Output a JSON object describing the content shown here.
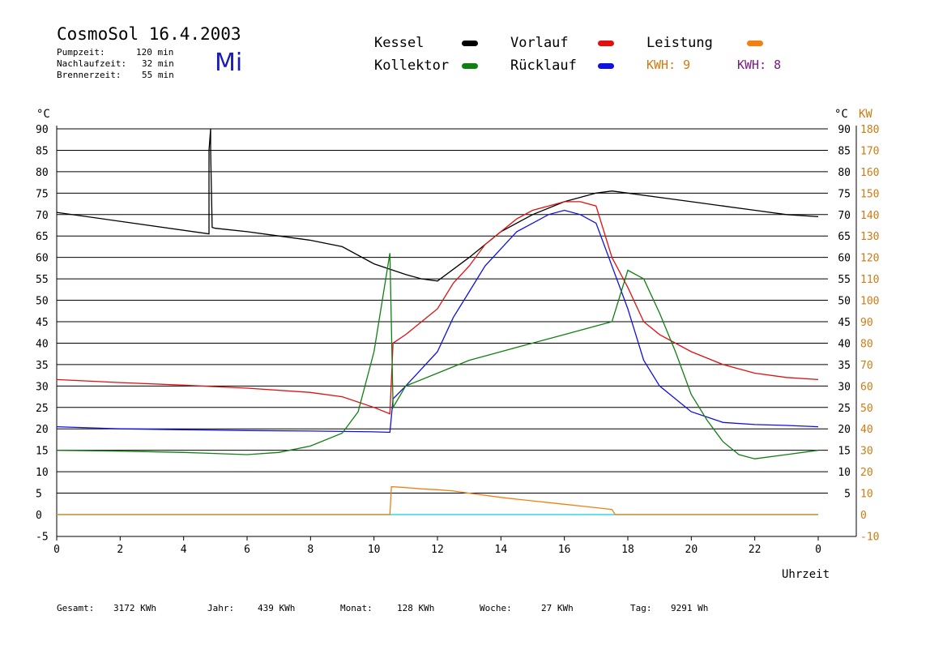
{
  "header": {
    "app_title": "CosmoSol 16.4.2003",
    "day": "Mi",
    "stats": [
      {
        "label": "Pumpzeit:",
        "value": "120 min"
      },
      {
        "label": "Nachlaufzeit:",
        "value": "32 min"
      },
      {
        "label": "Brennerzeit:",
        "value": "55 min"
      }
    ]
  },
  "legend": {
    "items": [
      {
        "label": "Kessel",
        "color": "#000000"
      },
      {
        "label": "Vorlauf",
        "color": "#e01010"
      },
      {
        "label": "Leistung",
        "color": "#f08010"
      },
      {
        "label": "Kollektor",
        "color": "#108010"
      },
      {
        "label": "Rücklauf",
        "color": "#1010e0"
      }
    ],
    "kwh_orange": "KWH: 9",
    "kwh_purple": "KWH: 8"
  },
  "footer": {
    "gesamt_label": "Gesamt:",
    "gesamt_value": "3172 KWh",
    "jahr_label": "Jahr:",
    "jahr_value": "439 KWh",
    "monat_label": "Monat:",
    "monat_value": "128 KWh",
    "woche_label": "Woche:",
    "woche_value": "27 KWh",
    "tag_label": "Tag:",
    "tag_value": "9291 Wh"
  },
  "chart_data": {
    "type": "line",
    "xlabel": "Uhrzeit",
    "ylabel_left": "°C",
    "ylabel_right": "KW",
    "xlim": [
      0,
      24
    ],
    "ylim": [
      -5,
      90
    ],
    "x_ticks": [
      "0",
      "2",
      "4",
      "6",
      "8",
      "10",
      "12",
      "14",
      "16",
      "18",
      "20",
      "22",
      "0"
    ],
    "y_ticks_left": [
      "-5",
      "0",
      "5",
      "10",
      "15",
      "20",
      "25",
      "30",
      "35",
      "40",
      "45",
      "50",
      "55",
      "60",
      "65",
      "70",
      "75",
      "80",
      "85",
      "90"
    ],
    "y_ticks_right_celsius": [
      "0",
      "5",
      "10",
      "15",
      "20",
      "25",
      "30",
      "35",
      "40",
      "45",
      "50",
      "55",
      "60",
      "65",
      "70",
      "75",
      "80",
      "85",
      "90"
    ],
    "y_ticks_right_kw": [
      "-10",
      "0",
      "10",
      "20",
      "30",
      "40",
      "50",
      "60",
      "70",
      "80",
      "90",
      "100",
      "110",
      "120",
      "130",
      "140",
      "150",
      "160",
      "170",
      "180"
    ],
    "grid": true,
    "series": [
      {
        "name": "Kessel",
        "color": "#000000",
        "x": [
          0,
          4.8,
          4.8,
          4.85,
          4.85,
          4.9,
          4.9,
          5,
          6,
          7,
          8,
          9,
          10,
          11,
          11.5,
          12,
          13,
          14,
          15,
          16,
          17,
          17.5,
          18,
          19,
          20,
          21,
          22,
          23,
          24
        ],
        "y": [
          70.5,
          65.5,
          85,
          90,
          85,
          67,
          67,
          66.8,
          66,
          65,
          64,
          62.5,
          58.5,
          56,
          55,
          54.5,
          60,
          66,
          70,
          73,
          75,
          75.5,
          75,
          74,
          73,
          72,
          71,
          70,
          69.5
        ]
      },
      {
        "name": "Vorlauf",
        "color": "#e01010",
        "x": [
          0,
          2,
          4,
          6,
          8,
          9,
          10,
          10.5,
          10.6,
          11,
          11.5,
          12,
          12.5,
          13,
          13.5,
          14,
          14.5,
          15,
          15.5,
          16,
          16.5,
          17,
          17.5,
          18,
          18.5,
          19,
          20,
          21,
          22,
          23,
          24
        ],
        "y": [
          31.5,
          30.8,
          30.2,
          29.5,
          28.5,
          27.5,
          25,
          23.5,
          40,
          42,
          45,
          48,
          54,
          58,
          63,
          66,
          69,
          71,
          72,
          73,
          73,
          72,
          60,
          53,
          45,
          42,
          38,
          35,
          33,
          32,
          31.5
        ]
      },
      {
        "name": "Rücklauf",
        "color": "#1010e0",
        "x": [
          0,
          2,
          4,
          6,
          8,
          9,
          10,
          10.5,
          10.6,
          11,
          11.5,
          12,
          12.5,
          13,
          13.5,
          14,
          14.5,
          15,
          15.5,
          16,
          16.5,
          17,
          17.5,
          18,
          18.5,
          19,
          20,
          21,
          22,
          23,
          24
        ],
        "y": [
          20.5,
          20,
          19.8,
          19.6,
          19.5,
          19.4,
          19.3,
          19.2,
          27,
          30,
          34,
          38,
          46,
          52,
          58,
          62,
          66,
          68,
          70,
          71,
          70,
          68,
          58,
          48,
          36,
          30,
          24,
          21.5,
          21,
          20.8,
          20.5
        ]
      },
      {
        "name": "Kollektor",
        "color": "#108010",
        "x": [
          0,
          2,
          4,
          6,
          7,
          8,
          9,
          9.5,
          10,
          10.5,
          10.6,
          11,
          12,
          13,
          14,
          15,
          16,
          17,
          17.5,
          18,
          18.5,
          19,
          19.5,
          20,
          20.5,
          21,
          21.5,
          22,
          23,
          24
        ],
        "y": [
          15,
          14.8,
          14.5,
          14,
          14.5,
          16,
          19,
          24,
          38,
          61,
          25,
          30,
          33,
          36,
          38,
          40,
          42,
          44,
          45,
          57,
          55,
          47,
          38,
          28,
          22,
          17,
          14,
          13,
          14,
          15
        ]
      },
      {
        "name": "Leistung",
        "color": "#f08010",
        "x": [
          0,
          10.5,
          10.55,
          11,
          11.5,
          12,
          12.5,
          13,
          13.5,
          14,
          14.5,
          15,
          15.5,
          16,
          16.5,
          17,
          17.5,
          17.6,
          24
        ],
        "y": [
          0,
          0,
          6.5,
          6.3,
          6,
          5.8,
          5.5,
          5,
          4.5,
          4,
          3.6,
          3.2,
          2.8,
          2.4,
          2,
          1.6,
          1.2,
          0,
          0
        ]
      }
    ]
  }
}
